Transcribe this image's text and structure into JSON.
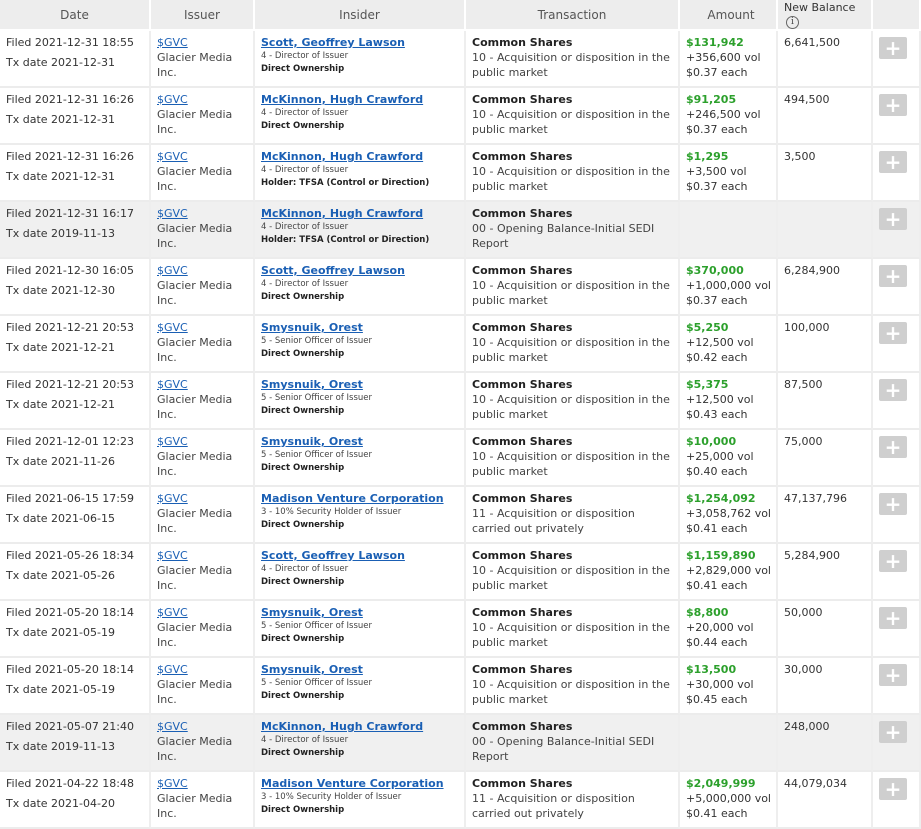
{
  "headers": {
    "date": "Date",
    "issuer": "Issuer",
    "insider": "Insider",
    "transaction": "Transaction",
    "amount": "Amount",
    "balance": "New Balance",
    "info_icon": "i"
  },
  "add_label": "+",
  "rows": [
    {
      "filed": "Filed 2021-12-31 18:55",
      "tx_date": "Tx date 2021-12-31",
      "ticker": "$GVC",
      "issuer": "Glacier Media Inc.",
      "insider": "Scott, Geoffrey Lawson",
      "relationship": "4 - Director of Issuer",
      "ownership": "Direct Ownership",
      "security": "Common Shares",
      "transaction": "10 - Acquisition or disposition in the public market",
      "price": "$131,942",
      "vol": "+356,600 vol",
      "each": "$0.37 each",
      "balance": "6,641,500"
    },
    {
      "filed": "Filed 2021-12-31 16:26",
      "tx_date": "Tx date 2021-12-31",
      "ticker": "$GVC",
      "issuer": "Glacier Media Inc.",
      "insider": "McKinnon, Hugh Crawford",
      "relationship": "4 - Director of Issuer",
      "ownership": "Direct Ownership",
      "security": "Common Shares",
      "transaction": "10 - Acquisition or disposition in the public market",
      "price": "$91,205",
      "vol": "+246,500 vol",
      "each": "$0.37 each",
      "balance": "494,500"
    },
    {
      "filed": "Filed 2021-12-31 16:26",
      "tx_date": "Tx date 2021-12-31",
      "ticker": "$GVC",
      "issuer": "Glacier Media Inc.",
      "insider": "McKinnon, Hugh Crawford",
      "relationship": "4 - Director of Issuer",
      "ownership": "Holder: TFSA (Control or Direction)",
      "security": "Common Shares",
      "transaction": "10 - Acquisition or disposition in the public market",
      "price": "$1,295",
      "vol": "+3,500 vol",
      "each": "$0.37 each",
      "balance": "3,500"
    },
    {
      "filed": "Filed 2021-12-31 16:17",
      "tx_date": "Tx date 2019-11-13",
      "ticker": "$GVC",
      "issuer": "Glacier Media Inc.",
      "insider": "McKinnon, Hugh Crawford",
      "relationship": "4 - Director of Issuer",
      "ownership": "Holder: TFSA (Control or Direction)",
      "security": "Common Shares",
      "transaction": "00 - Opening Balance-Initial SEDI Report",
      "price": "",
      "vol": "",
      "each": "",
      "balance": "",
      "gray": true
    },
    {
      "filed": "Filed 2021-12-30 16:05",
      "tx_date": "Tx date 2021-12-30",
      "ticker": "$GVC",
      "issuer": "Glacier Media Inc.",
      "insider": "Scott, Geoffrey Lawson",
      "relationship": "4 - Director of Issuer",
      "ownership": "Direct Ownership",
      "security": "Common Shares",
      "transaction": "10 - Acquisition or disposition in the public market",
      "price": "$370,000",
      "vol": "+1,000,000 vol",
      "each": "$0.37 each",
      "balance": "6,284,900"
    },
    {
      "filed": "Filed 2021-12-21 20:53",
      "tx_date": "Tx date 2021-12-21",
      "ticker": "$GVC",
      "issuer": "Glacier Media Inc.",
      "insider": "Smysnuik, Orest",
      "relationship": "5 - Senior Officer of Issuer",
      "ownership": "Direct Ownership",
      "security": "Common Shares",
      "transaction": "10 - Acquisition or disposition in the public market",
      "price": "$5,250",
      "vol": "+12,500 vol",
      "each": "$0.42 each",
      "balance": "100,000"
    },
    {
      "filed": "Filed 2021-12-21 20:53",
      "tx_date": "Tx date 2021-12-21",
      "ticker": "$GVC",
      "issuer": "Glacier Media Inc.",
      "insider": "Smysnuik, Orest",
      "relationship": "5 - Senior Officer of Issuer",
      "ownership": "Direct Ownership",
      "security": "Common Shares",
      "transaction": "10 - Acquisition or disposition in the public market",
      "price": "$5,375",
      "vol": "+12,500 vol",
      "each": "$0.43 each",
      "balance": "87,500"
    },
    {
      "filed": "Filed 2021-12-01 12:23",
      "tx_date": "Tx date 2021-11-26",
      "ticker": "$GVC",
      "issuer": "Glacier Media Inc.",
      "insider": "Smysnuik, Orest",
      "relationship": "5 - Senior Officer of Issuer",
      "ownership": "Direct Ownership",
      "security": "Common Shares",
      "transaction": "10 - Acquisition or disposition in the public market",
      "price": "$10,000",
      "vol": "+25,000 vol",
      "each": "$0.40 each",
      "balance": "75,000"
    },
    {
      "filed": "Filed 2021-06-15 17:59",
      "tx_date": "Tx date 2021-06-15",
      "ticker": "$GVC",
      "issuer": "Glacier Media Inc.",
      "insider": "Madison Venture Corporation",
      "relationship": "3 - 10% Security Holder of Issuer",
      "ownership": "Direct Ownership",
      "security": "Common Shares",
      "transaction": "11 - Acquisition or disposition carried out privately",
      "price": "$1,254,092",
      "vol": "+3,058,762 vol",
      "each": "$0.41 each",
      "balance": "47,137,796"
    },
    {
      "filed": "Filed 2021-05-26 18:34",
      "tx_date": "Tx date 2021-05-26",
      "ticker": "$GVC",
      "issuer": "Glacier Media Inc.",
      "insider": "Scott, Geoffrey Lawson",
      "relationship": "4 - Director of Issuer",
      "ownership": "Direct Ownership",
      "security": "Common Shares",
      "transaction": "10 - Acquisition or disposition in the public market",
      "price": "$1,159,890",
      "vol": "+2,829,000 vol",
      "each": "$0.41 each",
      "balance": "5,284,900"
    },
    {
      "filed": "Filed 2021-05-20 18:14",
      "tx_date": "Tx date 2021-05-19",
      "ticker": "$GVC",
      "issuer": "Glacier Media Inc.",
      "insider": "Smysnuik, Orest",
      "relationship": "5 - Senior Officer of Issuer",
      "ownership": "Direct Ownership",
      "security": "Common Shares",
      "transaction": "10 - Acquisition or disposition in the public market",
      "price": "$8,800",
      "vol": "+20,000 vol",
      "each": "$0.44 each",
      "balance": "50,000"
    },
    {
      "filed": "Filed 2021-05-20 18:14",
      "tx_date": "Tx date 2021-05-19",
      "ticker": "$GVC",
      "issuer": "Glacier Media Inc.",
      "insider": "Smysnuik, Orest",
      "relationship": "5 - Senior Officer of Issuer",
      "ownership": "Direct Ownership",
      "security": "Common Shares",
      "transaction": "10 - Acquisition or disposition in the public market",
      "price": "$13,500",
      "vol": "+30,000 vol",
      "each": "$0.45 each",
      "balance": "30,000"
    },
    {
      "filed": "Filed 2021-05-07 21:40",
      "tx_date": "Tx date 2019-11-13",
      "ticker": "$GVC",
      "issuer": "Glacier Media Inc.",
      "insider": "McKinnon, Hugh Crawford",
      "relationship": "4 - Director of Issuer",
      "ownership": "Direct Ownership",
      "security": "Common Shares",
      "transaction": "00 - Opening Balance-Initial SEDI Report",
      "price": "",
      "vol": "",
      "each": "",
      "balance": "248,000",
      "gray": true
    },
    {
      "filed": "Filed 2021-04-22 18:48",
      "tx_date": "Tx date 2021-04-20",
      "ticker": "$GVC",
      "issuer": "Glacier Media Inc.",
      "insider": "Madison Venture Corporation",
      "relationship": "3 - 10% Security Holder of Issuer",
      "ownership": "Direct Ownership",
      "security": "Common Shares",
      "transaction": "11 - Acquisition or disposition carried out privately",
      "price": "$2,049,999",
      "vol": "+5,000,000 vol",
      "each": "$0.41 each",
      "balance": "44,079,034"
    }
  ]
}
